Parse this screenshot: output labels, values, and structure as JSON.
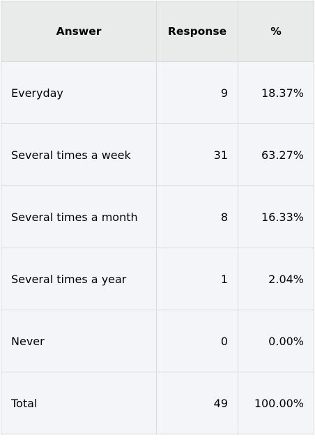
{
  "table": {
    "headers": {
      "answer": "Answer",
      "response": "Response",
      "percent": "%"
    },
    "rows": [
      {
        "answer": "Everyday",
        "response": "9",
        "percent": "18.37%"
      },
      {
        "answer": "Several times a week",
        "response": "31",
        "percent": "63.27%"
      },
      {
        "answer": "Several times a month",
        "response": "8",
        "percent": "16.33%"
      },
      {
        "answer": "Several times a year",
        "response": "1",
        "percent": "2.04%"
      },
      {
        "answer": "Never",
        "response": "0",
        "percent": "0.00%"
      },
      {
        "answer": "Total",
        "response": "49",
        "percent": "100.00%"
      }
    ]
  },
  "colors": {
    "header_background": "#e9eaea",
    "cell_background": "#f4f5f8",
    "border": "#d9d9d9"
  }
}
